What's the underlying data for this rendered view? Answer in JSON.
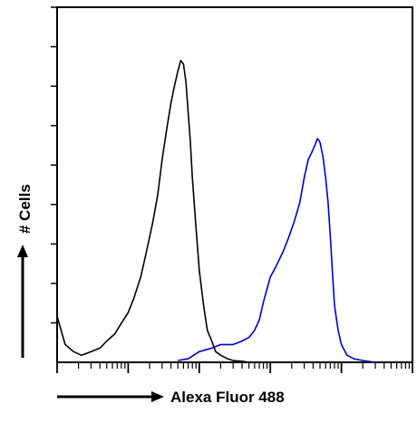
{
  "chart_data": {
    "type": "line",
    "title": "",
    "xlabel": "Alexa Fluor 488",
    "ylabel": "# Cells",
    "x_scale": "log",
    "xlim": [
      1,
      100000
    ],
    "ylim": [
      0,
      100
    ],
    "grid": false,
    "legend": "none",
    "series": [
      {
        "color": "#000000",
        "x": [
          1,
          1.3,
          1.7,
          2.2,
          3,
          4,
          5,
          6.5,
          8,
          10,
          12,
          15,
          18,
          22,
          26,
          30,
          35,
          40,
          45,
          50,
          55,
          60,
          65,
          70,
          75,
          80,
          90,
          100,
          115,
          130,
          150,
          170,
          200,
          250,
          300,
          400,
          500
        ],
        "values": [
          13,
          5,
          3,
          2,
          3,
          4,
          6,
          8,
          11,
          14,
          18,
          24,
          31,
          39,
          47,
          57,
          66,
          73,
          78,
          82,
          85,
          84,
          79,
          70,
          62,
          52,
          38,
          26,
          16,
          9,
          6,
          3,
          2,
          1,
          0.5,
          0.3,
          0
        ]
      },
      {
        "color": "#0000c8",
        "x": [
          50,
          70,
          100,
          150,
          200,
          300,
          400,
          500,
          600,
          700,
          800,
          1000,
          1200,
          1500,
          1800,
          2200,
          2600,
          3000,
          3400,
          3800,
          4200,
          4600,
          5000,
          5500,
          6000,
          6500,
          7000,
          7500,
          8000,
          9000,
          10000,
          12000,
          15000,
          20000,
          25000,
          30000
        ],
        "values": [
          0.5,
          1,
          3,
          4,
          5,
          5,
          6,
          7,
          9,
          12,
          17,
          24,
          27,
          31,
          35,
          40,
          45,
          52,
          57,
          59,
          61,
          63,
          62,
          58,
          52,
          45,
          35,
          25,
          16,
          9,
          5,
          2,
          1,
          0.5,
          0.2,
          0
        ]
      }
    ],
    "axis_color": "#000000"
  }
}
